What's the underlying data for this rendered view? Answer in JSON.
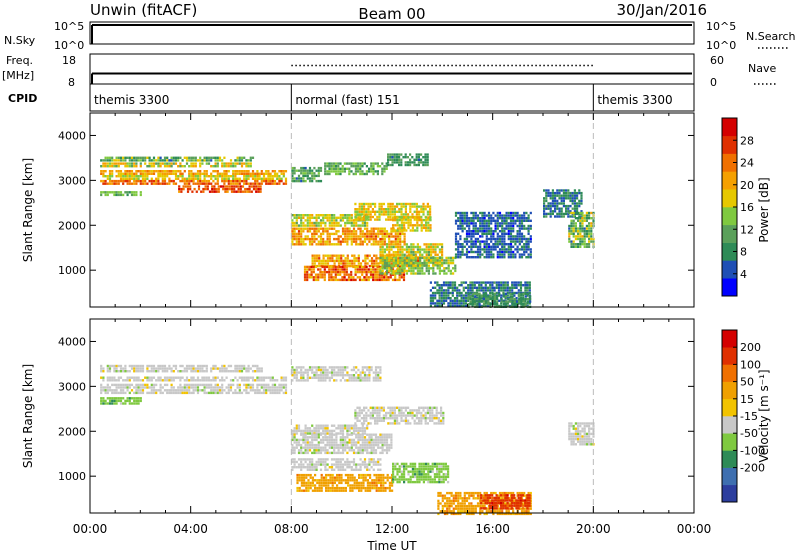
{
  "header": {
    "left": "Unwin (fitACF)",
    "center": "Beam 00",
    "right": "30/Jan/2016"
  },
  "colors": {
    "axis": "#000000",
    "grid_dash": "#bbbbbb",
    "gray_scatter": "#c8c8c8"
  },
  "chart_data": [
    {
      "type": "line",
      "name": "nsky-search",
      "left_label": "N.Sky",
      "right_label": "N.Search",
      "left_ticks": [
        "10^5",
        "10^0"
      ],
      "right_ticks": [
        "10^5",
        "10^0"
      ]
    },
    {
      "type": "line",
      "name": "freq-nave",
      "left_label": "Freq.",
      "left_unit": "[MHz]",
      "right_label": "Nave",
      "left_ticks": [
        18,
        8
      ],
      "right_ticks": [
        60,
        0
      ],
      "freq_value": 11.5,
      "nave_value": 37
    },
    {
      "type": "table",
      "name": "cpid",
      "label": "CPID",
      "segments": [
        {
          "start": 0,
          "end": 8,
          "text": "themis 3300"
        },
        {
          "start": 8,
          "end": 20,
          "text": "normal (fast) 151"
        },
        {
          "start": 20,
          "end": 24,
          "text": "themis 3300"
        }
      ]
    },
    {
      "type": "heatmap",
      "name": "power",
      "ylabel": "Slant Range [km]",
      "ylim": [
        180,
        4500
      ],
      "y_ticks": [
        1000,
        2000,
        3000,
        4000
      ],
      "colorbar_label": "Power [dB]",
      "colorbar_ticks": [
        4,
        8,
        12,
        16,
        20,
        24,
        28
      ],
      "colorbar_range": [
        0,
        32
      ],
      "colorbar_colors": [
        "#0000ff",
        "#1f4fb5",
        "#2e8b57",
        "#5aa05a",
        "#7fc940",
        "#e6c800",
        "#f5a000",
        "#f07000",
        "#e03000",
        "#d40000"
      ],
      "regions": [
        {
          "t": [
            0.4,
            6.5
          ],
          "r": [
            3420,
            3530
          ],
          "v": [
            6,
            18
          ]
        },
        {
          "t": [
            0.4,
            6.4
          ],
          "r": [
            3300,
            3400
          ],
          "v": [
            10,
            22
          ]
        },
        {
          "t": [
            0.4,
            7.8
          ],
          "r": [
            3140,
            3230
          ],
          "v": [
            18,
            24
          ]
        },
        {
          "t": [
            0.4,
            7.8
          ],
          "r": [
            3040,
            3120
          ],
          "v": [
            14,
            20
          ]
        },
        {
          "t": [
            0.4,
            7.8
          ],
          "r": [
            2900,
            3010
          ],
          "v": [
            20,
            28
          ]
        },
        {
          "t": [
            3.5,
            6.8
          ],
          "r": [
            2760,
            2890
          ],
          "v": [
            22,
            30
          ]
        },
        {
          "t": [
            0.4,
            2.0
          ],
          "r": [
            2650,
            2760
          ],
          "v": [
            8,
            16
          ]
        },
        {
          "t": [
            8.0,
            9.2
          ],
          "r": [
            3000,
            3300
          ],
          "v": [
            6,
            14
          ]
        },
        {
          "t": [
            9.3,
            11.8
          ],
          "r": [
            3150,
            3400
          ],
          "v": [
            8,
            16
          ]
        },
        {
          "t": [
            11.8,
            13.4
          ],
          "r": [
            3350,
            3600
          ],
          "v": [
            6,
            12
          ]
        },
        {
          "t": [
            8.0,
            11.0
          ],
          "r": [
            2000,
            2250
          ],
          "v": [
            12,
            20
          ]
        },
        {
          "t": [
            10.5,
            13.5
          ],
          "r": [
            2150,
            2500
          ],
          "v": [
            14,
            22
          ]
        },
        {
          "t": [
            8.0,
            12.5
          ],
          "r": [
            1550,
            1950
          ],
          "v": [
            16,
            26
          ]
        },
        {
          "t": [
            12.0,
            13.5
          ],
          "r": [
            1900,
            2200
          ],
          "v": [
            14,
            22
          ]
        },
        {
          "t": [
            11.5,
            14.0
          ],
          "r": [
            1100,
            1600
          ],
          "v": [
            12,
            22
          ]
        },
        {
          "t": [
            8.8,
            13.0
          ],
          "r": [
            1100,
            1350
          ],
          "v": [
            16,
            26
          ]
        },
        {
          "t": [
            8.5,
            12.5
          ],
          "r": [
            760,
            1100
          ],
          "v": [
            18,
            30
          ]
        },
        {
          "t": [
            11.5,
            14.5
          ],
          "r": [
            900,
            1300
          ],
          "v": [
            10,
            18
          ]
        },
        {
          "t": [
            13.5,
            17.5
          ],
          "r": [
            220,
            750
          ],
          "v": [
            4,
            10
          ]
        },
        {
          "t": [
            15.0,
            17.5
          ],
          "r": [
            200,
            500
          ],
          "v": [
            6,
            12
          ]
        },
        {
          "t": [
            14.5,
            17.5
          ],
          "r": [
            1300,
            2300
          ],
          "v": [
            3,
            8
          ]
        },
        {
          "t": [
            18.0,
            19.5
          ],
          "r": [
            2200,
            2800
          ],
          "v": [
            4,
            10
          ]
        },
        {
          "t": [
            19.0,
            20.0
          ],
          "r": [
            1500,
            2300
          ],
          "v": [
            6,
            20
          ]
        }
      ]
    },
    {
      "type": "heatmap",
      "name": "velocity",
      "ylabel": "Slant Range [km]",
      "ylim": [
        180,
        4500
      ],
      "y_ticks": [
        1000,
        2000,
        3000,
        4000
      ],
      "colorbar_label": "Velocity [m s⁻¹]",
      "colorbar_ticks": [
        "200",
        "100",
        "50",
        "15",
        "-15",
        "-50",
        "-100",
        "-200"
      ],
      "colorbar_colors": [
        "#2c3e9e",
        "#3e6fb0",
        "#2e8b57",
        "#7fc940",
        "#c8c8c8",
        "#f2c300",
        "#f0a000",
        "#f07000",
        "#e03000",
        "#d40000"
      ],
      "x_ticks": [
        "00:00",
        "04:00",
        "08:00",
        "12:00",
        "16:00",
        "20:00",
        "00:00"
      ],
      "xlabel": "Time UT",
      "regions": [
        {
          "t": [
            0.4,
            7.8
          ],
          "r": [
            3120,
            3220
          ],
          "c": 4
        },
        {
          "t": [
            0.4,
            7.8
          ],
          "r": [
            2990,
            3060
          ],
          "c": 4
        },
        {
          "t": [
            0.4,
            7.8
          ],
          "r": [
            2860,
            2940
          ],
          "c": 4
        },
        {
          "t": [
            0.4,
            6.8
          ],
          "r": [
            3350,
            3480
          ],
          "c": 4
        },
        {
          "t": [
            0.4,
            2.0
          ],
          "r": [
            2600,
            2760
          ],
          "c": 3
        },
        {
          "t": [
            8.0,
            11.5
          ],
          "r": [
            3150,
            3450
          ],
          "c": 4
        },
        {
          "t": [
            8.0,
            11.0
          ],
          "r": [
            1950,
            2150
          ],
          "c": 4
        },
        {
          "t": [
            10.5,
            14.0
          ],
          "r": [
            2150,
            2550
          ],
          "c": 4
        },
        {
          "t": [
            8.0,
            12.0
          ],
          "r": [
            1500,
            1950
          ],
          "c": 4
        },
        {
          "t": [
            8.0,
            11.5
          ],
          "r": [
            1150,
            1400
          ],
          "c": 4
        },
        {
          "t": [
            8.2,
            12.0
          ],
          "r": [
            700,
            1050
          ],
          "c": 6
        },
        {
          "t": [
            12.0,
            14.2
          ],
          "r": [
            850,
            1300
          ],
          "c": 3
        },
        {
          "t": [
            13.8,
            17.5
          ],
          "r": [
            180,
            650
          ],
          "c": 6
        },
        {
          "t": [
            15.5,
            17.5
          ],
          "r": [
            300,
            600
          ],
          "c": 8
        },
        {
          "t": [
            19.0,
            20.0
          ],
          "r": [
            1700,
            2200
          ],
          "c": 4
        }
      ]
    }
  ]
}
